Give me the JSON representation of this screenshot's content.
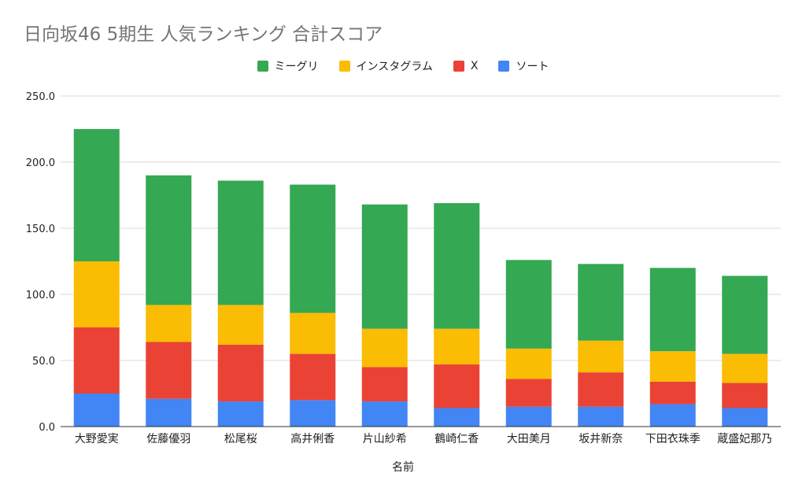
{
  "chart_data": {
    "type": "bar",
    "stacked": true,
    "title": "日向坂46 5期生 人気ランキング 合計スコア",
    "xlabel": "名前",
    "ylabel": "",
    "ylim": [
      0,
      250
    ],
    "yticks": [
      "0.0",
      "50.0",
      "100.0",
      "150.0",
      "200.0",
      "250.0"
    ],
    "grid": true,
    "legend_position": "top",
    "categories": [
      "大野愛実",
      "佐藤優羽",
      "松尾桜",
      "高井俐香",
      "片山紗希",
      "鶴崎仁香",
      "大田美月",
      "坂井新奈",
      "下田衣珠季",
      "蔵盛妃那乃"
    ],
    "series": [
      {
        "name": "ソート",
        "color": "#4285f4",
        "values": [
          25,
          21,
          19,
          20,
          19,
          14,
          15,
          15,
          17,
          14
        ]
      },
      {
        "name": "X",
        "color": "#ea4335",
        "values": [
          50,
          43,
          43,
          35,
          26,
          33,
          21,
          26,
          17,
          19
        ]
      },
      {
        "name": "インスタグラム",
        "color": "#fbbc04",
        "values": [
          50,
          28,
          30,
          31,
          29,
          27,
          23,
          24,
          23,
          22
        ]
      },
      {
        "name": "ミーグリ",
        "color": "#34a853",
        "values": [
          100,
          98,
          94,
          97,
          94,
          95,
          67,
          58,
          63,
          59
        ]
      }
    ],
    "legend_order": [
      "ミーグリ",
      "インスタグラム",
      "X",
      "ソート"
    ]
  }
}
